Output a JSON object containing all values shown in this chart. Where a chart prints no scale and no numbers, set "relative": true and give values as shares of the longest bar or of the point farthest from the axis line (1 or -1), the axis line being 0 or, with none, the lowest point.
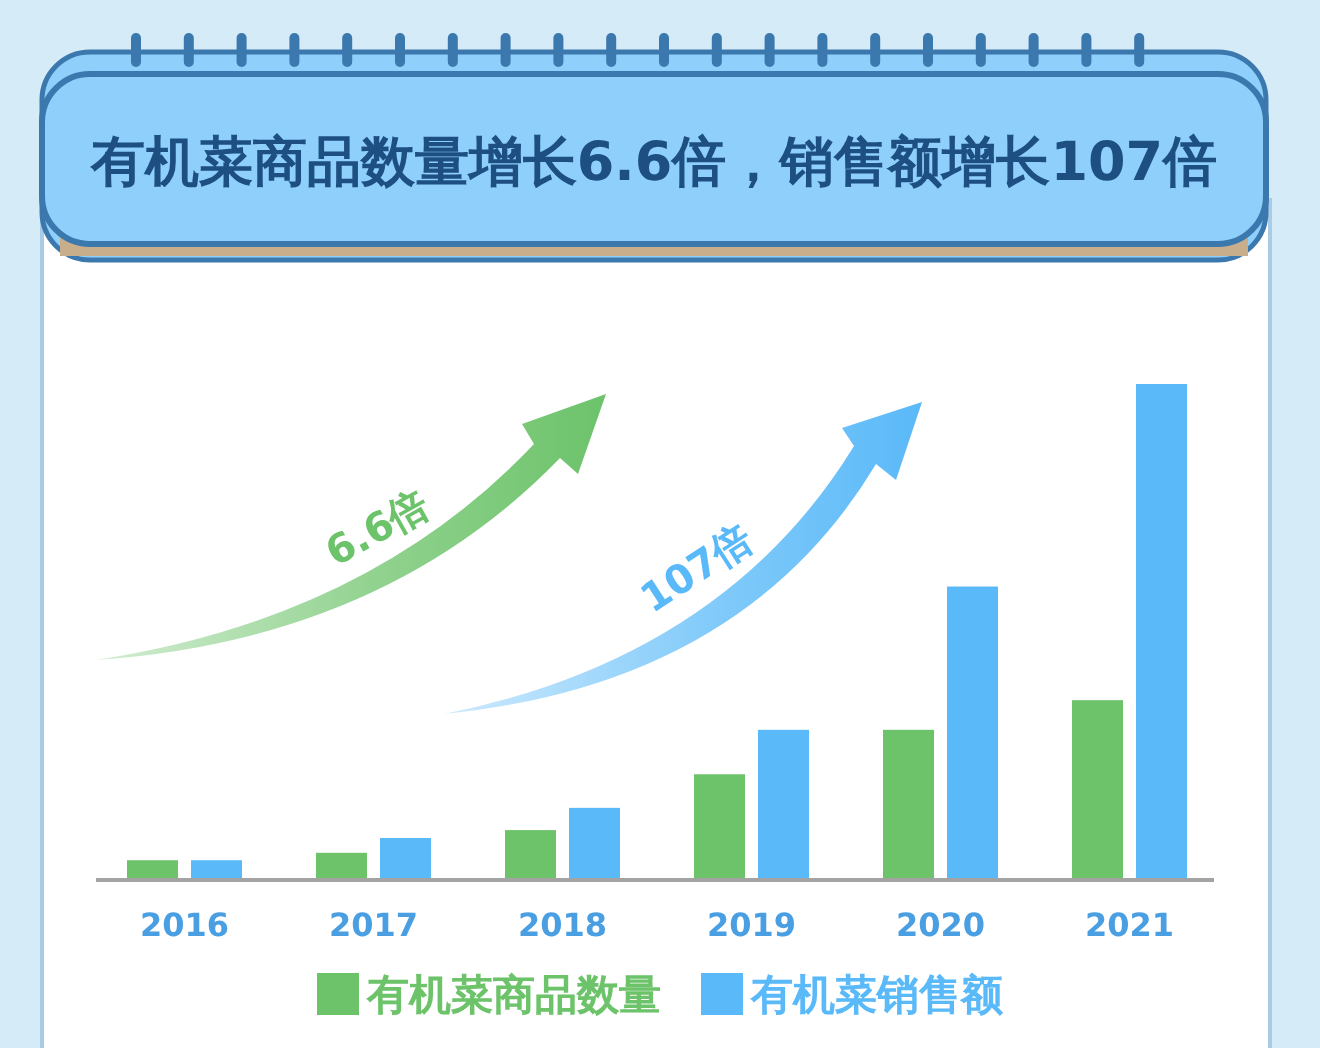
{
  "chart_data": {
    "type": "bar",
    "title": "有机菜商品数量增长6.6倍，销售额增长107倍",
    "categories": [
      "2016",
      "2017",
      "2018",
      "2019",
      "2020",
      "2021"
    ],
    "series": [
      {
        "name": "有机菜商品数量",
        "color": "#6cc36a",
        "values": [
          0.036,
          0.051,
          0.097,
          0.21,
          0.3,
          0.36
        ]
      },
      {
        "name": "有机菜销售额",
        "color": "#5ab9f8",
        "values": [
          0.036,
          0.081,
          0.142,
          0.3,
          0.59,
          1
        ]
      }
    ],
    "relative": true,
    "legend": "bottom",
    "annotations": [
      "6.6倍",
      "107倍"
    ]
  }
}
